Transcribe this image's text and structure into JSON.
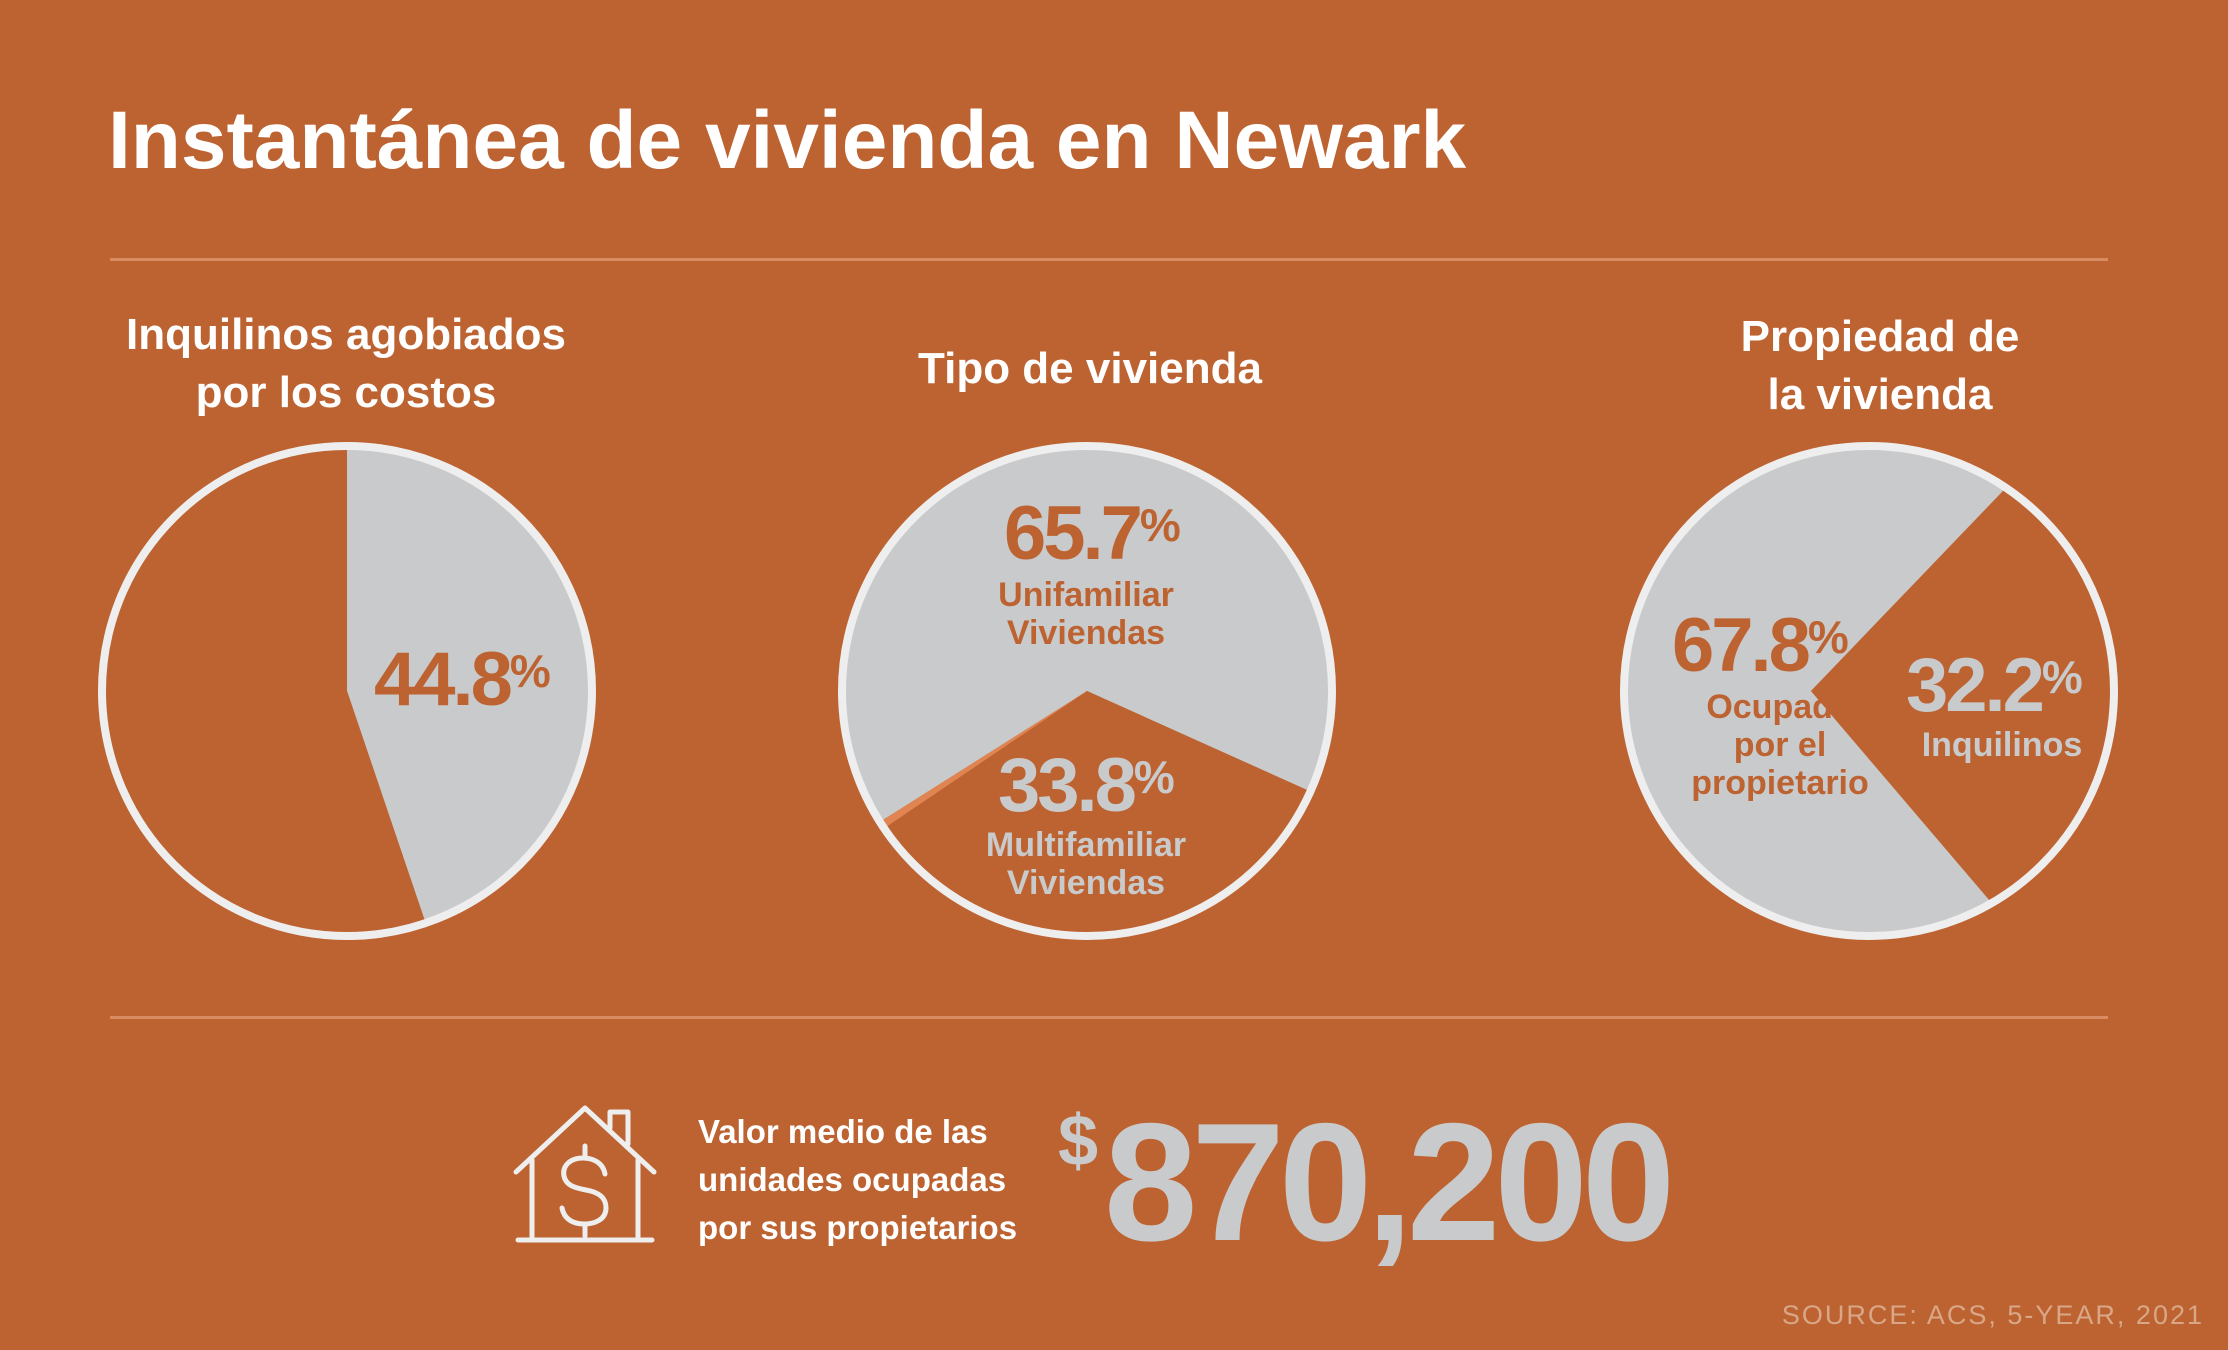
{
  "title": "Instantánea de vivienda en Newark",
  "colors": {
    "background": "#BD6331",
    "grey": "#C9CACC",
    "outline": "#EEEEEE",
    "accent": "#E08552"
  },
  "chart_data": [
    {
      "type": "pie",
      "title_lines": [
        "Inquilinos agobiados",
        "por los costos"
      ],
      "slices": [
        {
          "value": 44.8,
          "value_text": "44.8",
          "unit": "%",
          "label_lines": [],
          "color": "#C9CACC"
        },
        {
          "value": 55.2,
          "value_text": "",
          "unit": "",
          "label_lines": [],
          "color": "#BD6331"
        }
      ]
    },
    {
      "type": "pie",
      "title_lines": [
        "Tipo de vivienda"
      ],
      "slices": [
        {
          "value": 65.7,
          "value_text": "65.7",
          "unit": "%",
          "label_lines": [
            "Unifamiliar",
            "Viviendas"
          ],
          "color": "#C9CACC"
        },
        {
          "value": 33.8,
          "value_text": "33.8",
          "unit": "%",
          "label_lines": [
            "Multifamiliar",
            "Viviendas"
          ],
          "color": "#BD6331"
        },
        {
          "value": 0.5,
          "value_text": "",
          "unit": "",
          "label_lines": [],
          "color": "#E08552"
        }
      ]
    },
    {
      "type": "pie",
      "title_lines": [
        "Propiedad de",
        "la vivienda"
      ],
      "slices": [
        {
          "value": 67.8,
          "value_text": "67.8",
          "unit": "%",
          "label_lines": [
            "Ocupado",
            "por el",
            "propietario"
          ],
          "color": "#C9CACC"
        },
        {
          "value": 32.2,
          "value_text": "32.2",
          "unit": "%",
          "label_lines": [
            "Inquilinos"
          ],
          "color": "#BD6331"
        }
      ]
    }
  ],
  "median": {
    "label_lines": [
      "Valor medio de las",
      "unidades ocupadas",
      "por sus propietarios"
    ],
    "currency": "$",
    "value": "870,200",
    "icon": "house-dollar-icon"
  },
  "source": "SOURCE: ACS, 5-YEAR, 2021"
}
